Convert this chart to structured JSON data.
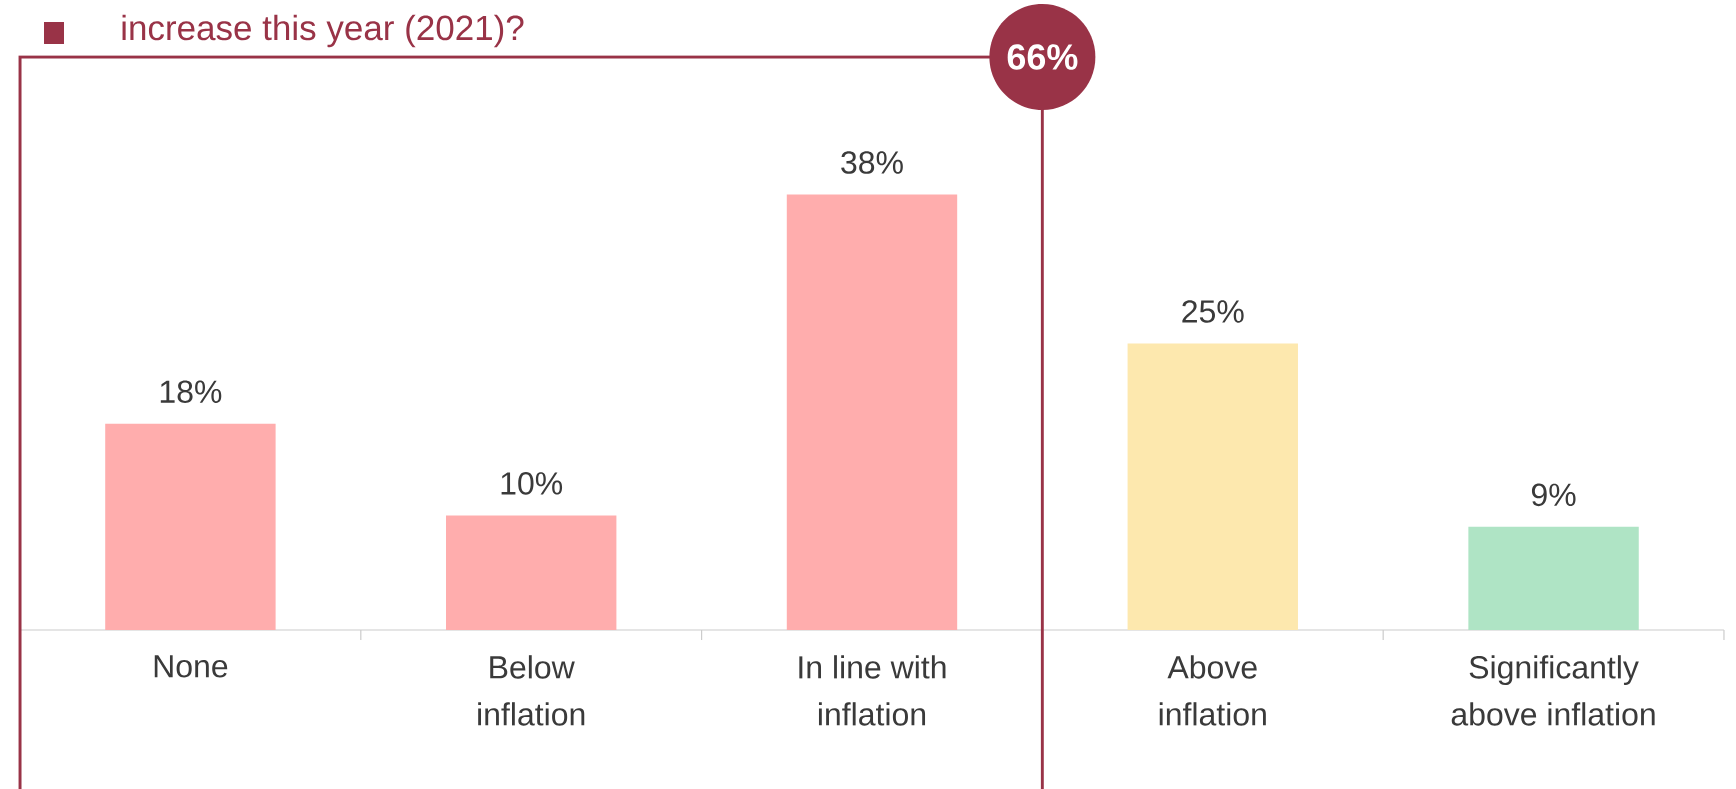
{
  "chart_data": {
    "type": "bar",
    "title": "increase this year (2021)?",
    "categories": [
      "None",
      "Below\ninflation",
      "In line with\ninflation",
      "Above\ninflation",
      "Significantly\nabove inflation"
    ],
    "values": [
      18,
      10,
      38,
      25,
      9
    ],
    "colors": [
      "#ffadad",
      "#ffadad",
      "#ffadad",
      "#fde8ae",
      "#afe4c5"
    ],
    "value_labels": [
      "18%",
      "10%",
      "38%",
      "25%",
      "9%"
    ],
    "annotations": [
      "66%"
    ]
  }
}
